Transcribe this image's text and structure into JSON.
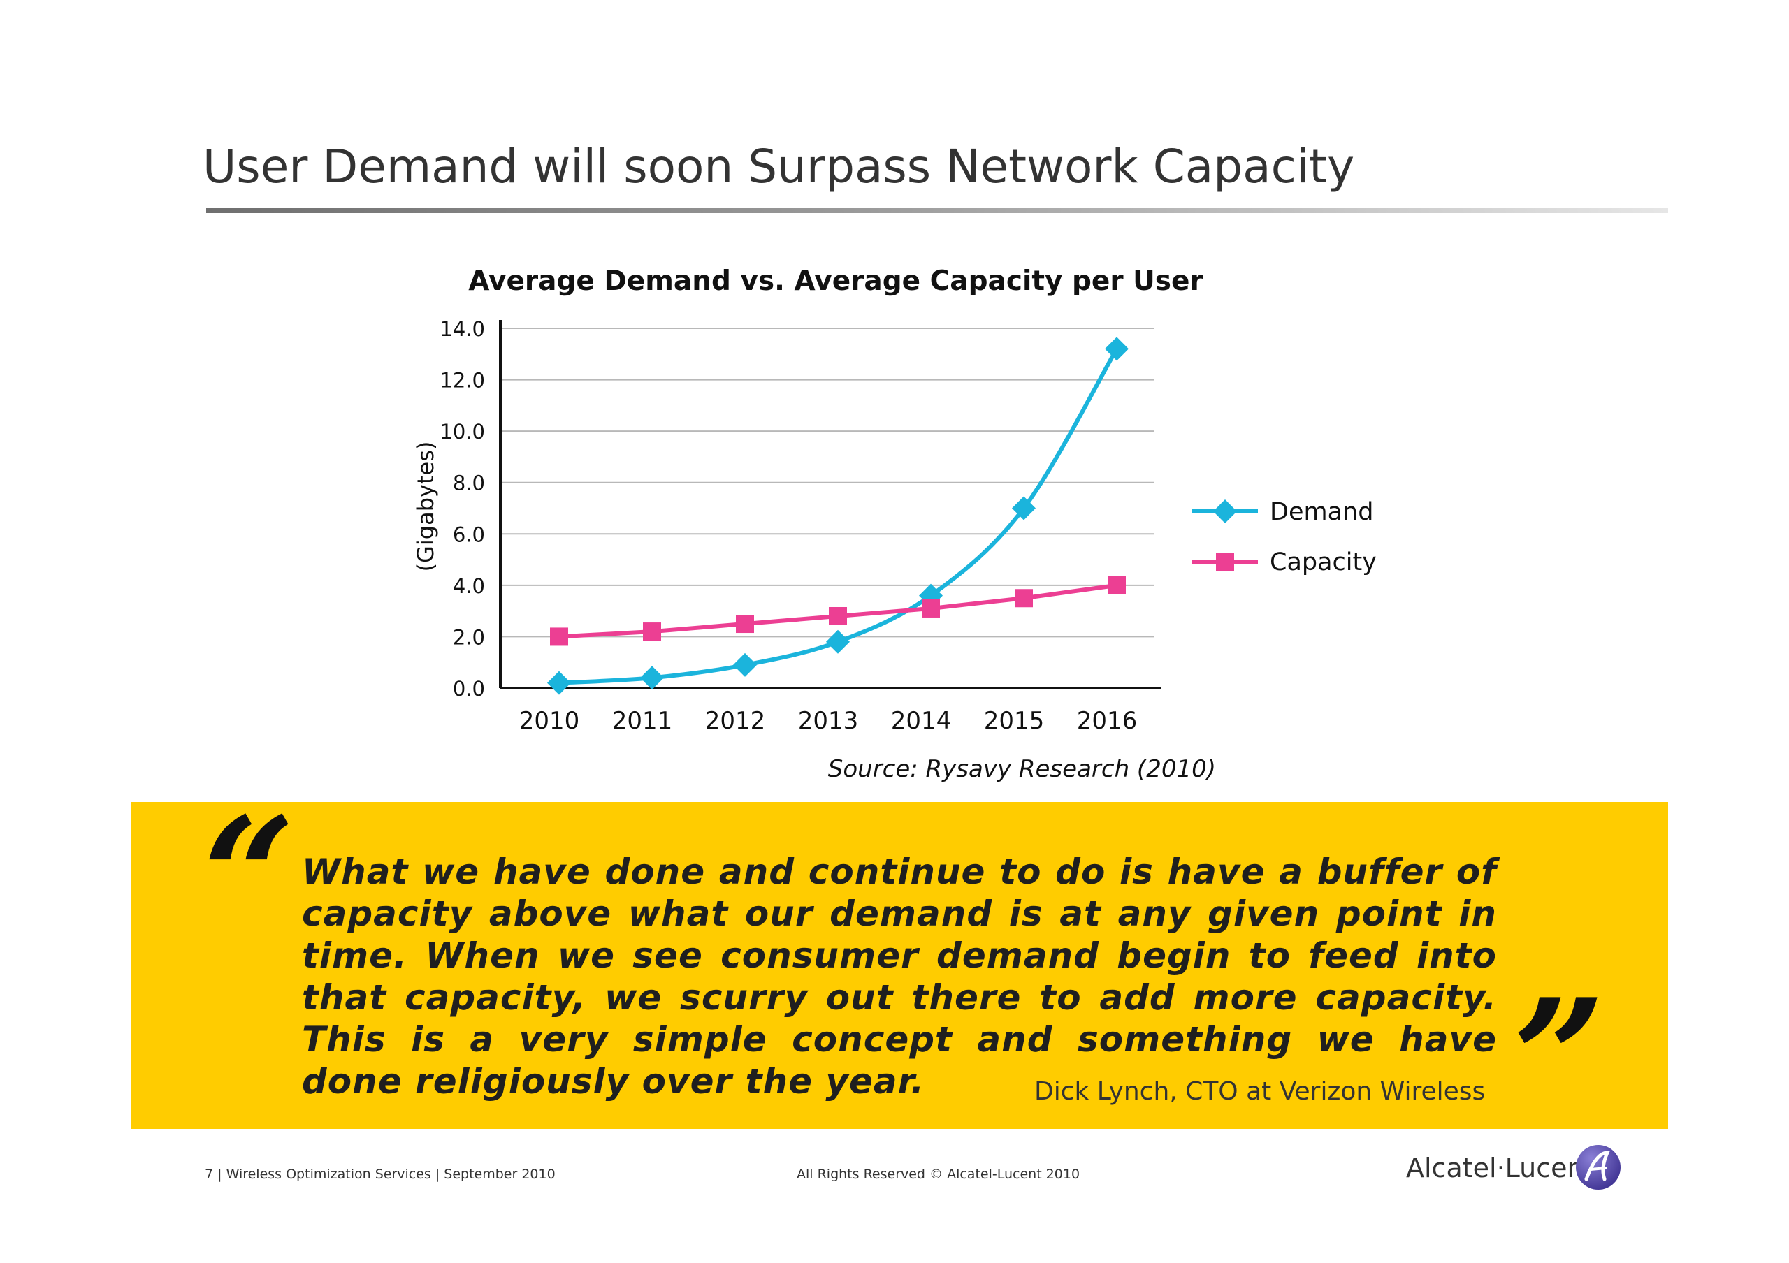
{
  "slide": {
    "title": "User Demand will soon Surpass Network Capacity"
  },
  "chart_data": {
    "type": "line",
    "title": "Average Demand vs. Average Capacity per User",
    "ylabel": "(Gigabytes)",
    "xlabel": "",
    "x": [
      "2010",
      "2011",
      "2012",
      "2013",
      "2014",
      "2015",
      "2016"
    ],
    "ylim": [
      0,
      14
    ],
    "yticks": [
      "0.0",
      "2.0",
      "4.0",
      "6.0",
      "8.0",
      "10.0",
      "12.0",
      "14.0"
    ],
    "grid": true,
    "legend_position": "right",
    "series": [
      {
        "name": "Demand",
        "values": [
          0.2,
          0.4,
          0.9,
          1.8,
          3.6,
          7.0,
          13.2
        ],
        "color": "#1bb4dc",
        "marker": "diamond"
      },
      {
        "name": "Capacity",
        "values": [
          2.0,
          2.2,
          2.5,
          2.8,
          3.1,
          3.5,
          4.0
        ],
        "color": "#ec3f93",
        "marker": "square"
      }
    ],
    "source": "Source: Rysavy Research (2010)"
  },
  "quote": {
    "open_mark": "“",
    "close_mark": "”",
    "text": "What we have done and continue to do is have a buffer of capacity above what our demand is at any given point in time. When we see consumer demand begin to feed into that capacity, we scurry out there to add more capacity. This is a very simple concept and something we have done religiously over the year.",
    "attribution": "Dick Lynch, CTO at Verizon Wireless",
    "background": "#ffcc00"
  },
  "footer": {
    "left": "7 | Wireless Optimization Services | September 2010",
    "center": "All Rights Reserved © Alcatel-Lucent 2010",
    "brand": "Alcatel·Lucent"
  }
}
